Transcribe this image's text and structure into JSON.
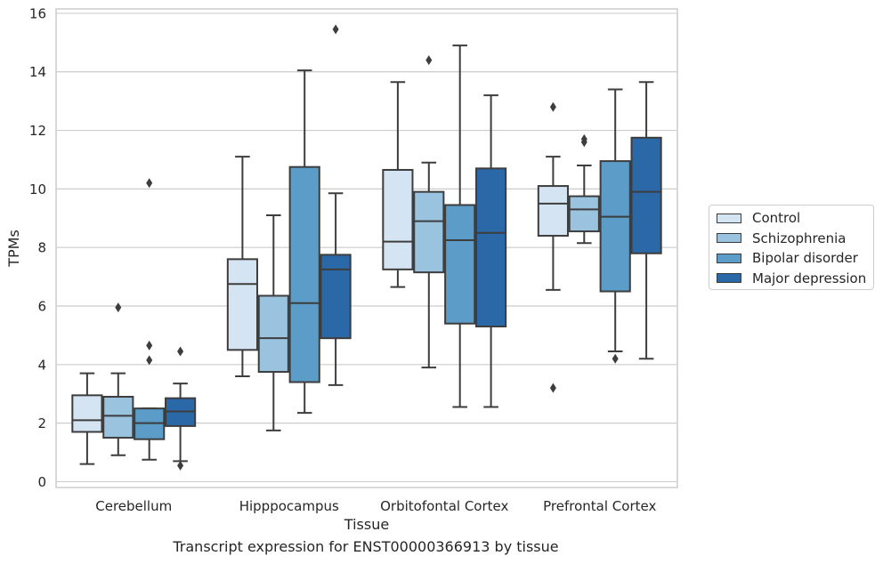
{
  "chart_data": {
    "type": "box",
    "title": "",
    "xlabel": "Tissue",
    "ylabel": "TPMs",
    "caption": "Transcript expression for ENST00000366913 by tissue",
    "ylim": [
      -0.2,
      16.15
    ],
    "yticks": [
      0,
      2,
      4,
      6,
      8,
      10,
      12,
      14,
      16
    ],
    "grid": true,
    "legend_position": "right",
    "categories": [
      "Cerebellum",
      "Hipppocampus",
      "Orbitofontal Cortex",
      "Prefrontal Cortex"
    ],
    "series": [
      {
        "name": "Control",
        "color": "#d5e4f2",
        "boxes": [
          {
            "min": 0.6,
            "q1": 1.7,
            "median": 2.1,
            "q3": 2.95,
            "max": 3.7,
            "outliers": []
          },
          {
            "min": 3.6,
            "q1": 4.5,
            "median": 6.75,
            "q3": 7.6,
            "max": 11.1,
            "outliers": []
          },
          {
            "min": 6.65,
            "q1": 7.25,
            "median": 8.2,
            "q3": 10.65,
            "max": 13.65,
            "outliers": []
          },
          {
            "min": 6.55,
            "q1": 8.4,
            "median": 9.5,
            "q3": 10.1,
            "max": 11.1,
            "outliers": [
              12.8,
              3.2
            ]
          }
        ]
      },
      {
        "name": "Schizophrenia",
        "color": "#9ac3df",
        "boxes": [
          {
            "min": 0.9,
            "q1": 1.5,
            "median": 2.25,
            "q3": 2.9,
            "max": 3.7,
            "outliers": [
              5.95
            ]
          },
          {
            "min": 1.75,
            "q1": 3.75,
            "median": 4.9,
            "q3": 6.35,
            "max": 9.1,
            "outliers": []
          },
          {
            "min": 3.9,
            "q1": 7.15,
            "median": 8.9,
            "q3": 9.9,
            "max": 10.9,
            "outliers": [
              14.4
            ]
          },
          {
            "min": 8.15,
            "q1": 8.55,
            "median": 9.3,
            "q3": 9.75,
            "max": 10.8,
            "outliers": [
              11.6,
              11.7
            ]
          }
        ]
      },
      {
        "name": "Bipolar disorder",
        "color": "#5b9cc8",
        "boxes": [
          {
            "min": 0.75,
            "q1": 1.45,
            "median": 2.0,
            "q3": 2.5,
            "max": 2.5,
            "outliers": [
              10.2,
              4.65,
              4.15
            ]
          },
          {
            "min": 2.35,
            "q1": 3.4,
            "median": 6.1,
            "q3": 10.75,
            "max": 14.05,
            "outliers": []
          },
          {
            "min": 2.55,
            "q1": 5.4,
            "median": 8.25,
            "q3": 9.45,
            "max": 14.9,
            "outliers": []
          },
          {
            "min": 4.45,
            "q1": 6.5,
            "median": 9.05,
            "q3": 10.95,
            "max": 13.4,
            "outliers": [
              4.2
            ]
          }
        ]
      },
      {
        "name": "Major depression",
        "color": "#2b68a8",
        "boxes": [
          {
            "min": 0.7,
            "q1": 1.9,
            "median": 2.4,
            "q3": 2.85,
            "max": 3.35,
            "outliers": [
              4.45,
              0.55
            ]
          },
          {
            "min": 3.3,
            "q1": 4.9,
            "median": 7.25,
            "q3": 7.75,
            "max": 9.85,
            "outliers": [
              15.45
            ]
          },
          {
            "min": 2.55,
            "q1": 5.3,
            "median": 8.5,
            "q3": 10.7,
            "max": 13.2,
            "outliers": []
          },
          {
            "min": 4.2,
            "q1": 7.8,
            "median": 9.9,
            "q3": 11.75,
            "max": 13.65,
            "outliers": []
          }
        ]
      }
    ]
  }
}
